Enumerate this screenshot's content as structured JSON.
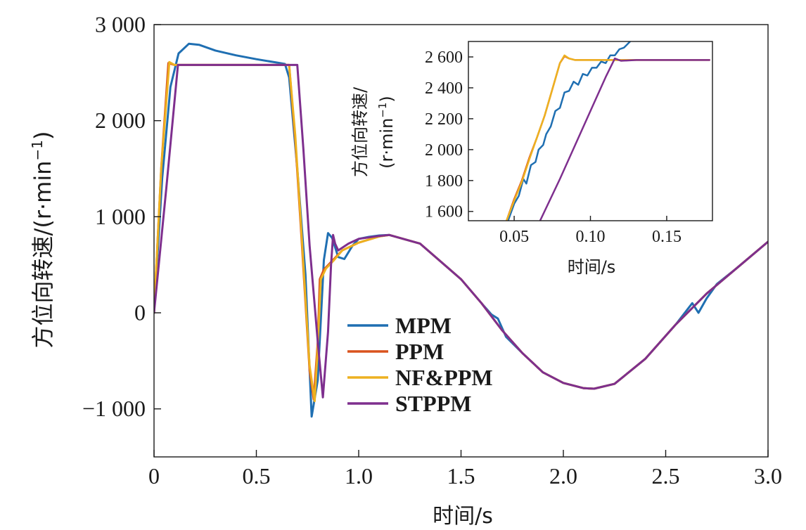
{
  "chart_data": [
    {
      "type": "line",
      "xlabel": "时间/s",
      "ylabel": "方位向转速/(r·min⁻¹)",
      "ylabel_main": "方位向转速/(r·min",
      "ylabel_sup": "−1",
      "ylabel_close": ")",
      "xlim": [
        0,
        3.0
      ],
      "ylim": [
        -1500,
        3000
      ],
      "x_ticks": [
        0,
        0.5,
        1.0,
        1.5,
        2.0,
        2.5,
        3.0
      ],
      "x_tick_labels": [
        "0",
        "0.5",
        "1.0",
        "1.5",
        "2.0",
        "2.5",
        "3.0"
      ],
      "y_ticks": [
        -1000,
        0,
        1000,
        2000,
        3000
      ],
      "y_tick_labels": [
        "−1 000",
        "0",
        "1 000",
        "2 000",
        "3 000"
      ],
      "grid": false,
      "legend_position": "center-left",
      "series": [
        {
          "name": "MPM",
          "color": "#1f6fb2",
          "points": [
            [
              0,
              0
            ],
            [
              0.04,
              1400
            ],
            [
              0.08,
              2350
            ],
            [
              0.12,
              2700
            ],
            [
              0.17,
              2800
            ],
            [
              0.22,
              2790
            ],
            [
              0.3,
              2730
            ],
            [
              0.4,
              2680
            ],
            [
              0.5,
              2640
            ],
            [
              0.6,
              2605
            ],
            [
              0.64,
              2590
            ],
            [
              0.66,
              2450
            ],
            [
              0.7,
              1500
            ],
            [
              0.74,
              400
            ],
            [
              0.77,
              -1080
            ],
            [
              0.8,
              -700
            ],
            [
              0.83,
              550
            ],
            [
              0.85,
              830
            ],
            [
              0.87,
              780
            ],
            [
              0.9,
              580
            ],
            [
              0.93,
              560
            ],
            [
              0.97,
              700
            ],
            [
              1.0,
              770
            ],
            [
              1.05,
              790
            ],
            [
              1.1,
              805
            ],
            [
              1.15,
              810
            ],
            [
              1.3,
              720
            ],
            [
              1.5,
              350
            ],
            [
              1.6,
              100
            ],
            [
              1.65,
              -20
            ],
            [
              1.68,
              -60
            ],
            [
              1.72,
              -250
            ],
            [
              1.8,
              -420
            ],
            [
              1.9,
              -620
            ],
            [
              2.0,
              -730
            ],
            [
              2.1,
              -785
            ],
            [
              2.15,
              -790
            ],
            [
              2.25,
              -740
            ],
            [
              2.4,
              -480
            ],
            [
              2.55,
              -120
            ],
            [
              2.63,
              100
            ],
            [
              2.66,
              0
            ],
            [
              2.7,
              150
            ],
            [
              2.75,
              300
            ],
            [
              2.85,
              470
            ],
            [
              3.0,
              740
            ]
          ]
        },
        {
          "name": "PPM",
          "color": "#d9531e",
          "points": [
            [
              0,
              0
            ],
            [
              0.035,
              1500
            ],
            [
              0.07,
              2600
            ],
            [
              0.1,
              2580
            ],
            [
              0.2,
              2580
            ],
            [
              0.4,
              2580
            ],
            [
              0.6,
              2580
            ],
            [
              0.66,
              2580
            ],
            [
              0.69,
              1800
            ],
            [
              0.72,
              800
            ],
            [
              0.76,
              -600
            ],
            [
              0.78,
              -900
            ],
            [
              0.8,
              -300
            ],
            [
              0.81,
              350
            ],
            [
              0.83,
              450
            ],
            [
              0.87,
              540
            ],
            [
              0.92,
              650
            ],
            [
              1.0,
              730
            ],
            [
              1.1,
              795
            ],
            [
              1.15,
              810
            ],
            [
              1.3,
              720
            ],
            [
              1.5,
              350
            ],
            [
              1.6,
              100
            ],
            [
              1.7,
              -180
            ],
            [
              1.8,
              -420
            ],
            [
              1.9,
              -620
            ],
            [
              2.0,
              -730
            ],
            [
              2.1,
              -785
            ],
            [
              2.15,
              -790
            ],
            [
              2.25,
              -740
            ],
            [
              2.4,
              -480
            ],
            [
              2.55,
              -120
            ],
            [
              2.7,
              200
            ],
            [
              2.85,
              470
            ],
            [
              3.0,
              740
            ]
          ]
        },
        {
          "name": "NF&PPM",
          "color": "#edb120",
          "points": [
            [
              0,
              0
            ],
            [
              0.035,
              1500
            ],
            [
              0.075,
              2610
            ],
            [
              0.1,
              2580
            ],
            [
              0.2,
              2580
            ],
            [
              0.4,
              2580
            ],
            [
              0.6,
              2580
            ],
            [
              0.66,
              2580
            ],
            [
              0.69,
              1850
            ],
            [
              0.72,
              850
            ],
            [
              0.76,
              -550
            ],
            [
              0.785,
              -920
            ],
            [
              0.8,
              -350
            ],
            [
              0.815,
              350
            ],
            [
              0.84,
              460
            ],
            [
              0.88,
              550
            ],
            [
              0.92,
              650
            ],
            [
              1.0,
              730
            ],
            [
              1.1,
              795
            ],
            [
              1.15,
              810
            ],
            [
              1.3,
              720
            ],
            [
              1.5,
              350
            ],
            [
              1.6,
              100
            ],
            [
              1.7,
              -180
            ],
            [
              1.8,
              -420
            ],
            [
              1.9,
              -620
            ],
            [
              2.0,
              -730
            ],
            [
              2.1,
              -785
            ],
            [
              2.15,
              -790
            ],
            [
              2.25,
              -740
            ],
            [
              2.4,
              -480
            ],
            [
              2.55,
              -120
            ],
            [
              2.7,
              200
            ],
            [
              2.85,
              470
            ],
            [
              3.0,
              740
            ]
          ]
        },
        {
          "name": "STPPM",
          "color": "#7e2f8e",
          "points": [
            [
              0,
              0
            ],
            [
              0.06,
              1300
            ],
            [
              0.117,
              2580
            ],
            [
              0.2,
              2580
            ],
            [
              0.4,
              2580
            ],
            [
              0.6,
              2580
            ],
            [
              0.7,
              2580
            ],
            [
              0.73,
              1700
            ],
            [
              0.76,
              700
            ],
            [
              0.8,
              -300
            ],
            [
              0.825,
              -880
            ],
            [
              0.85,
              -200
            ],
            [
              0.865,
              500
            ],
            [
              0.875,
              810
            ],
            [
              0.885,
              720
            ],
            [
              0.9,
              650
            ],
            [
              0.95,
              720
            ],
            [
              1.0,
              770
            ],
            [
              1.1,
              800
            ],
            [
              1.15,
              810
            ],
            [
              1.3,
              720
            ],
            [
              1.5,
              350
            ],
            [
              1.6,
              100
            ],
            [
              1.7,
              -180
            ],
            [
              1.8,
              -420
            ],
            [
              1.9,
              -620
            ],
            [
              2.0,
              -730
            ],
            [
              2.1,
              -785
            ],
            [
              2.15,
              -790
            ],
            [
              2.25,
              -740
            ],
            [
              2.4,
              -480
            ],
            [
              2.55,
              -120
            ],
            [
              2.7,
              200
            ],
            [
              2.85,
              470
            ],
            [
              3.0,
              740
            ]
          ]
        }
      ]
    },
    {
      "type": "line",
      "xlabel": "时间/s",
      "ylabel_line1": "方位向转速/",
      "ylabel_line2_main": "(r·min",
      "ylabel_line2_sup": "−1",
      "ylabel_line2_close": ")",
      "xlim": [
        0.02,
        0.18
      ],
      "ylim": [
        1540,
        2700
      ],
      "x_ticks": [
        0.05,
        0.1,
        0.15
      ],
      "x_tick_labels": [
        "0.05",
        "0.10",
        "0.15"
      ],
      "y_ticks": [
        1600,
        1800,
        2000,
        2200,
        2400,
        2600
      ],
      "y_tick_labels": [
        "1 600",
        "1 800",
        "2 000",
        "2 200",
        "2 400",
        "2 600"
      ],
      "grid": false,
      "series": [
        {
          "name": "MPM",
          "color": "#1f6fb2",
          "points": [
            [
              0.046,
              1540
            ],
            [
              0.05,
              1650
            ],
            [
              0.053,
              1700
            ],
            [
              0.056,
              1810
            ],
            [
              0.058,
              1780
            ],
            [
              0.061,
              1900
            ],
            [
              0.064,
              1920
            ],
            [
              0.066,
              2000
            ],
            [
              0.069,
              2030
            ],
            [
              0.071,
              2100
            ],
            [
              0.074,
              2150
            ],
            [
              0.077,
              2250
            ],
            [
              0.08,
              2270
            ],
            [
              0.083,
              2370
            ],
            [
              0.086,
              2380
            ],
            [
              0.089,
              2440
            ],
            [
              0.092,
              2420
            ],
            [
              0.095,
              2490
            ],
            [
              0.098,
              2480
            ],
            [
              0.101,
              2530
            ],
            [
              0.104,
              2530
            ],
            [
              0.107,
              2570
            ],
            [
              0.11,
              2560
            ],
            [
              0.113,
              2610
            ],
            [
              0.116,
              2610
            ],
            [
              0.119,
              2650
            ],
            [
              0.122,
              2660
            ],
            [
              0.126,
              2700
            ]
          ]
        },
        {
          "name": "PPM",
          "color": "#d9531e",
          "points": [
            [
              0.045,
              1540
            ],
            [
              0.05,
              1680
            ],
            [
              0.055,
              1800
            ],
            [
              0.06,
              1950
            ],
            [
              0.065,
              2080
            ],
            [
              0.07,
              2220
            ],
            [
              0.075,
              2390
            ],
            [
              0.08,
              2560
            ],
            [
              0.083,
              2605
            ],
            [
              0.086,
              2590
            ],
            [
              0.09,
              2580
            ],
            [
              0.1,
              2580
            ],
            [
              0.12,
              2580
            ],
            [
              0.15,
              2580
            ],
            [
              0.178,
              2580
            ]
          ]
        },
        {
          "name": "NF&PPM",
          "color": "#edb120",
          "points": [
            [
              0.045,
              1540
            ],
            [
              0.05,
              1670
            ],
            [
              0.055,
              1790
            ],
            [
              0.06,
              1940
            ],
            [
              0.065,
              2080
            ],
            [
              0.07,
              2220
            ],
            [
              0.075,
              2390
            ],
            [
              0.08,
              2560
            ],
            [
              0.083,
              2610
            ],
            [
              0.086,
              2590
            ],
            [
              0.09,
              2580
            ],
            [
              0.1,
              2580
            ],
            [
              0.12,
              2580
            ],
            [
              0.15,
              2580
            ],
            [
              0.178,
              2580
            ]
          ]
        },
        {
          "name": "STPPM",
          "color": "#7e2f8e",
          "points": [
            [
              0.067,
              1540
            ],
            [
              0.08,
              1810
            ],
            [
              0.09,
              2030
            ],
            [
              0.1,
              2250
            ],
            [
              0.11,
              2470
            ],
            [
              0.116,
              2590
            ],
            [
              0.12,
              2575
            ],
            [
              0.13,
              2580
            ],
            [
              0.15,
              2580
            ],
            [
              0.178,
              2580
            ]
          ]
        }
      ]
    }
  ]
}
